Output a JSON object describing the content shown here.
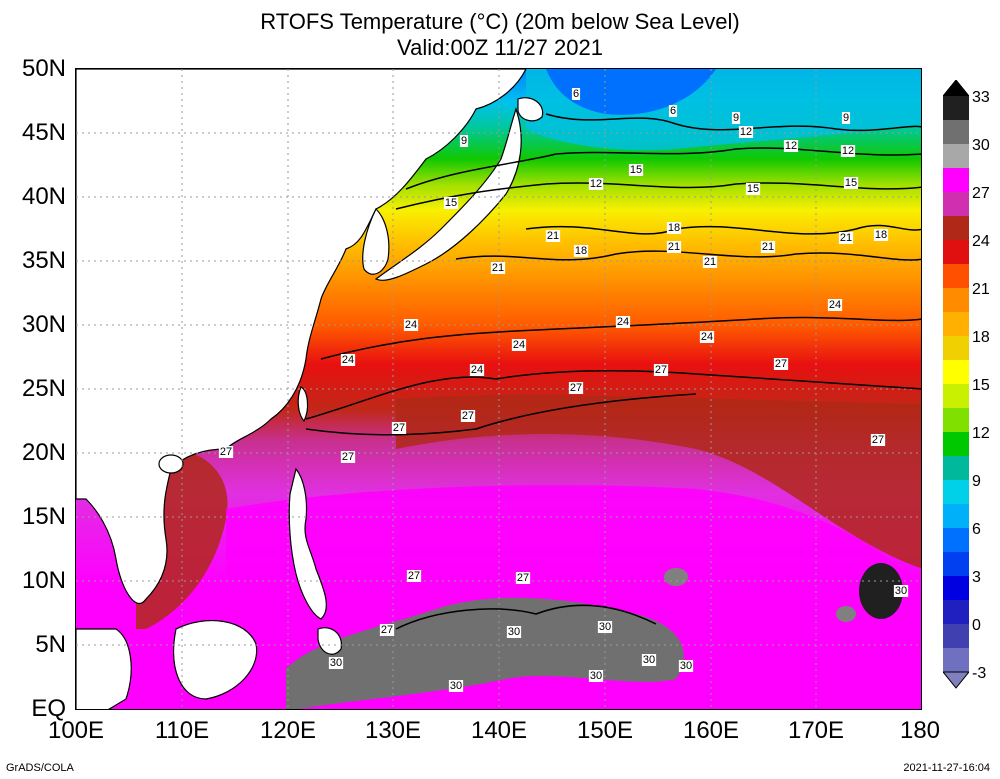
{
  "title": "RTOFS Temperature (°C) (20m below Sea Level)",
  "subtitle": "Valid:00Z 11/27 2021",
  "y_axis_labels": [
    "50N",
    "45N",
    "40N",
    "35N",
    "30N",
    "25N",
    "20N",
    "15N",
    "10N",
    "5N",
    "EQ"
  ],
  "x_axis_labels": [
    "100E",
    "110E",
    "120E",
    "130E",
    "140E",
    "150E",
    "160E",
    "170E",
    "180"
  ],
  "colorbar": {
    "labels": [
      "33",
      "30",
      "27",
      "24",
      "21",
      "18",
      "15",
      "12",
      "9",
      "6",
      "3",
      "0",
      "-3"
    ],
    "colors": [
      "#202020",
      "#707070",
      "#a8a8a8",
      "#ff00ff",
      "#d030b0",
      "#b02818",
      "#e01010",
      "#ff5000",
      "#ff8c00",
      "#ffb000",
      "#f0d000",
      "#ffff00",
      "#c8f000",
      "#80e000",
      "#00c800",
      "#00b89c",
      "#00d0e8",
      "#00b0f8",
      "#0070ff",
      "#0040f0",
      "#0000e0",
      "#2020c0",
      "#4040b0",
      "#7070c0"
    ]
  },
  "contour_labels": [
    "6",
    "6",
    "9",
    "9",
    "9",
    "12",
    "12",
    "12",
    "12",
    "15",
    "15",
    "15",
    "15",
    "18",
    "18",
    "18",
    "21",
    "21",
    "21",
    "21",
    "21",
    "21",
    "24",
    "24",
    "24",
    "24",
    "24",
    "24",
    "24",
    "27",
    "27",
    "27",
    "27",
    "27",
    "27",
    "27",
    "27",
    "27",
    "27",
    "27",
    "30",
    "30",
    "30",
    "30",
    "30",
    "30",
    "30",
    "30"
  ],
  "footer": {
    "left": "GrADS/COLA",
    "right": "2021-11-27-16:04"
  }
}
